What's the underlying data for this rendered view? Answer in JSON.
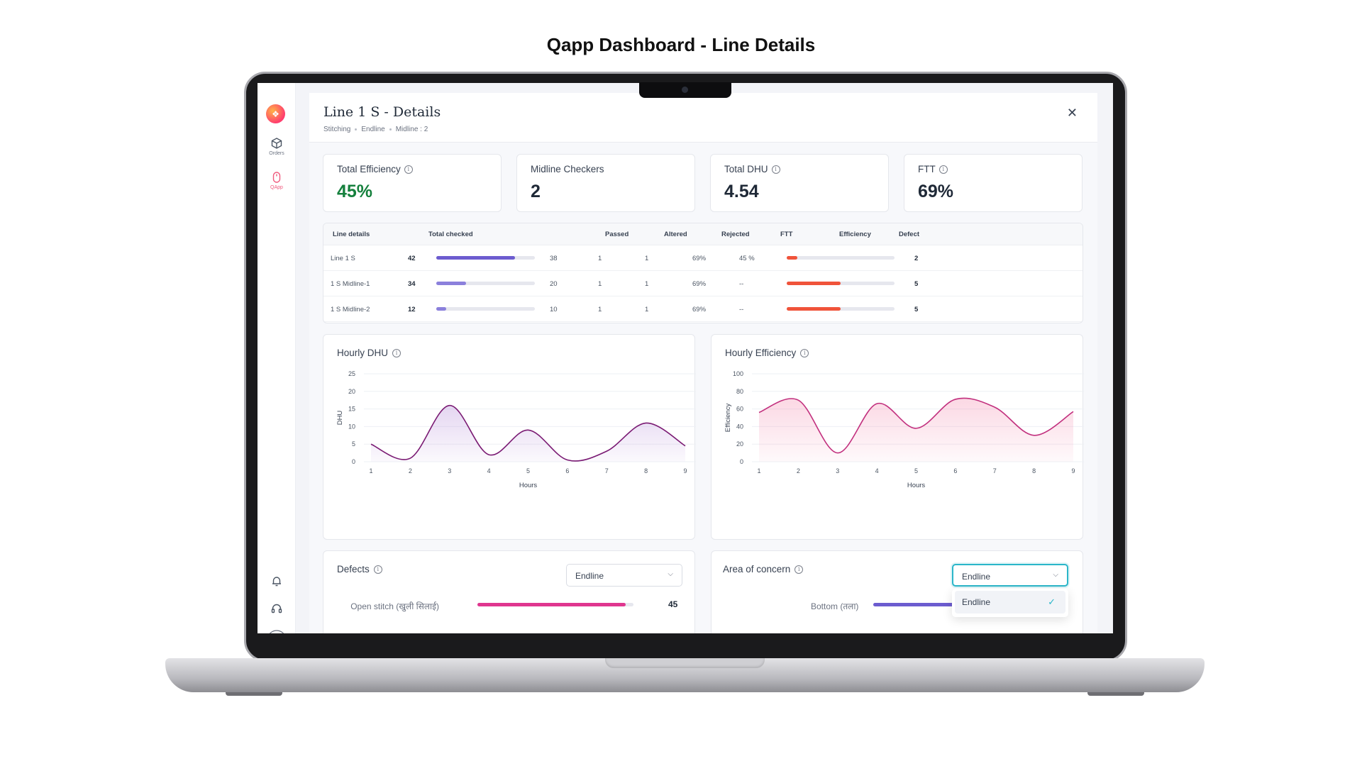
{
  "page_heading": "Qapp Dashboard - Line Details",
  "sidebar": {
    "items": [
      {
        "label": "Orders",
        "icon": "box-icon",
        "active": false
      },
      {
        "label": "QApp",
        "icon": "mouse-icon",
        "active": true
      }
    ]
  },
  "panel": {
    "title": "Line 1 S - Details",
    "breadcrumbs": [
      "Stitching",
      "Endline",
      "Midline : 2"
    ]
  },
  "stats": [
    {
      "label": "Total Efficiency",
      "value": "45%",
      "info": true,
      "color": "#15803d"
    },
    {
      "label": "Midline Checkers",
      "value": "2",
      "info": false,
      "color": "#1f2937"
    },
    {
      "label": "Total DHU",
      "value": "4.54",
      "info": true,
      "color": "#1f2937"
    },
    {
      "label": "FTT",
      "value": "69%",
      "info": true,
      "color": "#1f2937"
    }
  ],
  "table": {
    "headers": [
      "Line details",
      "Total checked",
      "Passed",
      "Altered",
      "Rejected",
      "FTT",
      "Efficiency",
      "Defect"
    ],
    "rows": [
      {
        "line": "Line 1 S",
        "checked": "42",
        "checked_ratio": 0.8,
        "checked_color": "#6c5ccf",
        "passed": "38",
        "altered": "1",
        "rejected": "1",
        "ftt": "69%",
        "efficiency": "45 %",
        "defect_ratio": 0.1,
        "defect": "2"
      },
      {
        "line": "1 S Midline-1",
        "checked": "34",
        "checked_ratio": 0.3,
        "checked_color": "#8b80dc",
        "passed": "20",
        "altered": "1",
        "rejected": "1",
        "ftt": "69%",
        "efficiency": "--",
        "defect_ratio": 0.5,
        "defect": "5"
      },
      {
        "line": "1 S Midline-2",
        "checked": "12",
        "checked_ratio": 0.1,
        "checked_color": "#8b80dc",
        "passed": "10",
        "altered": "1",
        "rejected": "1",
        "ftt": "69%",
        "efficiency": "--",
        "defect_ratio": 0.5,
        "defect": "5"
      }
    ],
    "defect_color": "#f0533a"
  },
  "chart_data": [
    {
      "type": "area",
      "title": "Hourly DHU",
      "xlabel": "Hours",
      "ylabel": "DHU",
      "x": [
        1,
        2,
        3,
        4,
        5,
        6,
        7,
        8,
        9
      ],
      "values": [
        5,
        1,
        16,
        2,
        9,
        0.5,
        3,
        11,
        4.5
      ],
      "ylim": [
        0,
        25
      ],
      "yticks": [
        0,
        5,
        10,
        15,
        20,
        25
      ],
      "line_color": "#7a1a73",
      "fill_color": "#b48ad8"
    },
    {
      "type": "area",
      "title": "Hourly Efficiency",
      "xlabel": "Hours",
      "ylabel": "Efficiency",
      "x": [
        1,
        2,
        3,
        4,
        5,
        6,
        7,
        8,
        9
      ],
      "values": [
        56,
        70,
        10,
        66,
        38,
        71,
        62,
        30,
        57
      ],
      "ylim": [
        0,
        100
      ],
      "yticks": [
        0,
        20,
        40,
        60,
        80,
        100
      ],
      "line_color": "#c2307e",
      "fill_color": "#f48fb1"
    }
  ],
  "defects": {
    "title": "Defects",
    "select_value": "Endline",
    "bars": [
      {
        "label": "Open stitch (खुली सिलाई)",
        "value": "45",
        "ratio": 0.95,
        "color": "#e0368f"
      }
    ]
  },
  "area_of_concern": {
    "title": "Area of concern",
    "select_value": "Endline",
    "dropdown_option": "Endline",
    "bars": [
      {
        "label": "Bottom (तला)",
        "color": "#6c5ccf"
      }
    ]
  }
}
